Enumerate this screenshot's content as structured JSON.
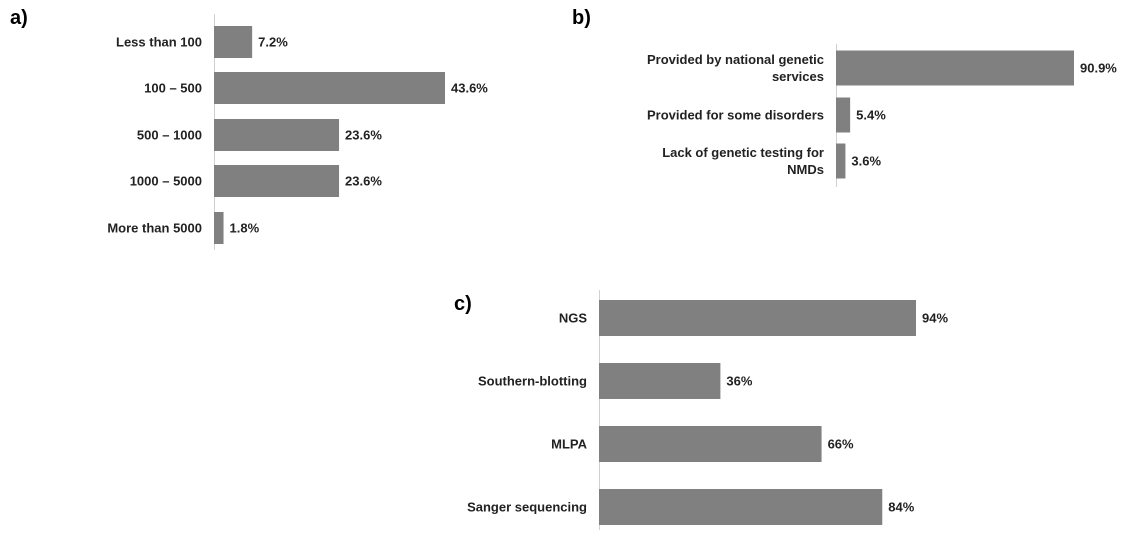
{
  "colors": {
    "bar": "#808080",
    "axis": "#d0d0d0",
    "text": "#222222"
  },
  "chart_data": [
    {
      "panel": "a)",
      "type": "bar",
      "orientation": "horizontal",
      "categories": [
        "Less than 100",
        "100 – 500",
        "500 – 1000",
        "1000 – 5000",
        "More than 5000"
      ],
      "values": [
        7.2,
        43.6,
        23.6,
        23.6,
        1.8
      ],
      "value_labels": [
        "7.2%",
        "43.6%",
        "23.6%",
        "23.6%",
        "1.8%"
      ],
      "unit": "%",
      "title": "",
      "xlabel": "",
      "ylabel": "",
      "grid": false,
      "legend": "none"
    },
    {
      "panel": "b)",
      "type": "bar",
      "orientation": "horizontal",
      "categories": [
        [
          "Provided by national genetic",
          "services"
        ],
        [
          "Provided for some disorders"
        ],
        [
          "Lack of genetic testing for",
          "NMDs"
        ]
      ],
      "values": [
        90.9,
        5.4,
        3.6
      ],
      "value_labels": [
        "90.9%",
        "5.4%",
        "3.6%"
      ],
      "unit": "%",
      "title": "",
      "xlabel": "",
      "ylabel": "",
      "grid": false,
      "legend": "none"
    },
    {
      "panel": "c)",
      "type": "bar",
      "orientation": "horizontal",
      "categories": [
        "NGS",
        "Southern-blotting",
        "MLPA",
        "Sanger sequencing"
      ],
      "values": [
        94,
        36,
        66,
        84
      ],
      "value_labels": [
        "94%",
        "36%",
        "66%",
        "84%"
      ],
      "unit": "%",
      "title": "",
      "xlabel": "",
      "ylabel": "",
      "grid": false,
      "legend": "none"
    }
  ]
}
